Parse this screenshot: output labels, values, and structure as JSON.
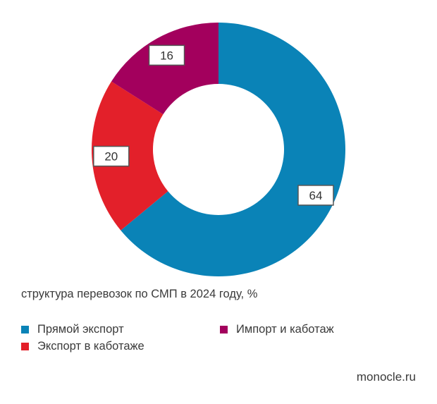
{
  "chart_data": {
    "type": "pie",
    "donut": true,
    "title": "структура перевозок по СМП в 2024 году, %",
    "slices": [
      {
        "name": "Прямой экспорт",
        "value": 64,
        "label": "64",
        "color": "#0a83b7"
      },
      {
        "name": "Экспорт в каботаже",
        "value": 20,
        "label": "20",
        "color": "#e3202a"
      },
      {
        "name": "Импорт и каботаж",
        "value": 16,
        "label": "16",
        "color": "#a3005d"
      }
    ],
    "legend": {
      "placement": "bottom",
      "items": [
        {
          "label": "Прямой экспорт",
          "color": "#0a83b7"
        },
        {
          "label": "Импорт и каботаж",
          "color": "#a3005d"
        },
        {
          "label": "Экспорт в каботаже",
          "color": "#e3202a"
        }
      ]
    }
  },
  "source": "monocle.ru"
}
